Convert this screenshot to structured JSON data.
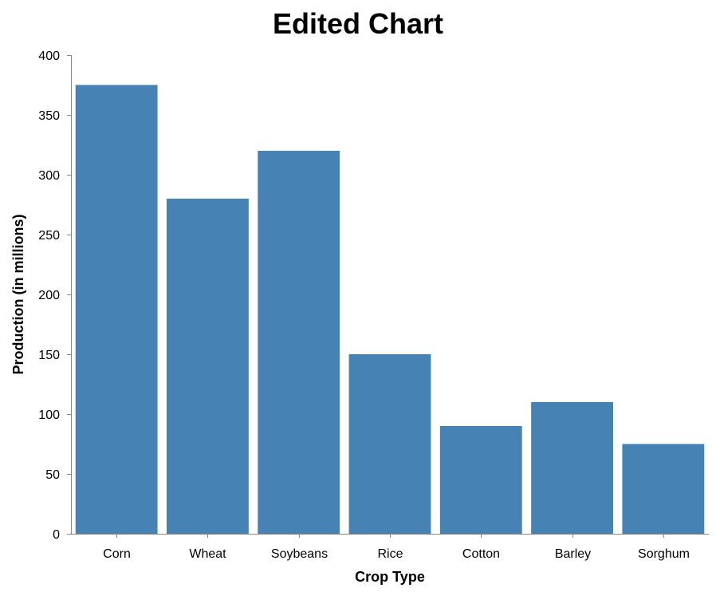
{
  "chart_data": {
    "type": "bar",
    "title": "Edited Chart",
    "xlabel": "Crop Type",
    "ylabel": "Production (in millions)",
    "categories": [
      "Corn",
      "Wheat",
      "Soybeans",
      "Rice",
      "Cotton",
      "Barley",
      "Sorghum"
    ],
    "values": [
      375,
      280,
      320,
      150,
      90,
      110,
      75
    ],
    "ylim": [
      0,
      400
    ],
    "yticks": [
      0,
      50,
      100,
      150,
      200,
      250,
      300,
      350,
      400
    ],
    "grid": false,
    "bar_color": "#4682b4",
    "axis_color": "#888888"
  }
}
